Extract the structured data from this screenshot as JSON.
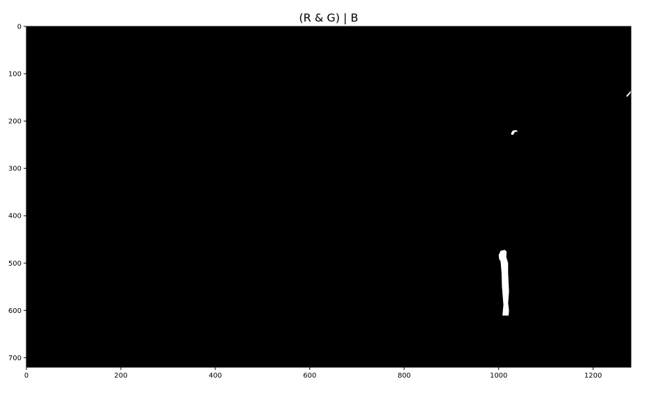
{
  "chart_data": {
    "type": "heatmap",
    "title": "(R & G) | B",
    "xlabel": "",
    "ylabel": "",
    "xlim": [
      0,
      1280
    ],
    "ylim": [
      720,
      0
    ],
    "x_ticks": [
      0,
      200,
      400,
      600,
      800,
      1000,
      1200
    ],
    "y_ticks": [
      0,
      100,
      200,
      300,
      400,
      500,
      600,
      700
    ],
    "grid": false,
    "colormap": "gray",
    "background_value": 0,
    "background_color": "#000000",
    "foreground_color": "#ffffff",
    "foreground_regions": [
      {
        "name": "top-right-streak",
        "points": [
          [
            1270,
            147
          ],
          [
            1277,
            139
          ],
          [
            1280,
            134
          ],
          [
            1280,
            140
          ],
          [
            1272,
            149
          ]
        ]
      },
      {
        "name": "small-blob",
        "points": [
          [
            1026,
            226
          ],
          [
            1030,
            220
          ],
          [
            1037,
            219
          ],
          [
            1041,
            222
          ],
          [
            1034,
            223
          ],
          [
            1031,
            229
          ],
          [
            1027,
            229
          ]
        ]
      },
      {
        "name": "vertical-blob",
        "points": [
          [
            1000,
            483
          ],
          [
            1004,
            474
          ],
          [
            1013,
            472
          ],
          [
            1017,
            476
          ],
          [
            1016,
            487
          ],
          [
            1020,
            500
          ],
          [
            1020,
            520
          ],
          [
            1022,
            560
          ],
          [
            1020,
            585
          ],
          [
            1022,
            600
          ],
          [
            1021,
            611
          ],
          [
            1008,
            611
          ],
          [
            1010,
            588
          ],
          [
            1007,
            550
          ],
          [
            1006,
            520
          ],
          [
            1004,
            496
          ],
          [
            1001,
            492
          ]
        ]
      }
    ]
  }
}
